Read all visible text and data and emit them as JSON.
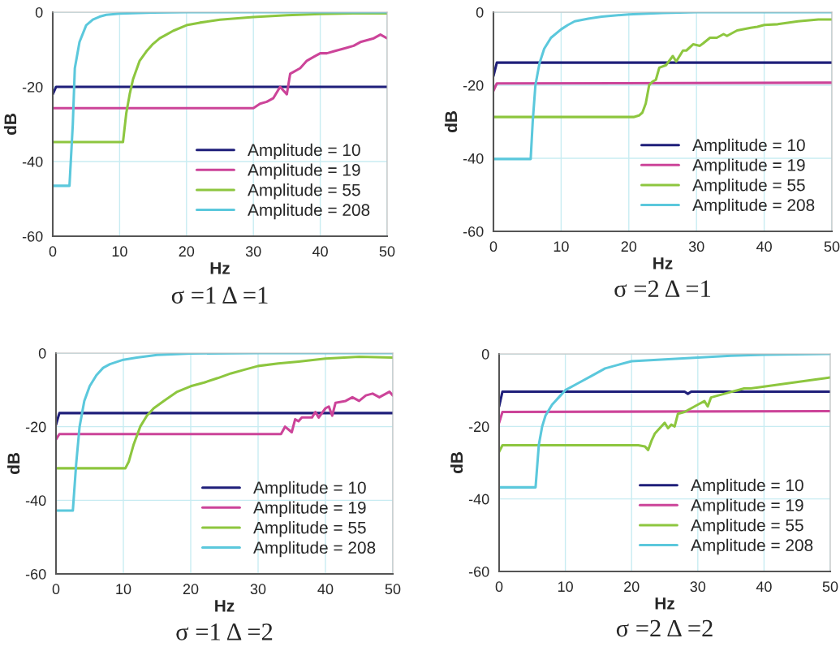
{
  "chart_data": [
    {
      "type": "line",
      "title": "σ =1 Δ =1",
      "xlabel": "Hz",
      "ylabel": "dB",
      "xlim": [
        0,
        50
      ],
      "xticks": [
        0,
        10,
        20,
        30,
        40,
        50
      ],
      "ylim": [
        -60,
        0
      ],
      "yticks": [
        -60,
        -40,
        -20,
        0
      ],
      "grid": true,
      "legend": "bottom right",
      "series": [
        {
          "name": "Amplitude = 10",
          "color": "#1f1f7a",
          "x": [
            0,
            0.5,
            50
          ],
          "values": [
            -22,
            -20,
            -20
          ]
        },
        {
          "name": "Amplitude = 19",
          "color": "#cc4499",
          "x": [
            0,
            30,
            31,
            32,
            33,
            34,
            35,
            35.5,
            36,
            37,
            38,
            39,
            40,
            41,
            42,
            43,
            44,
            45,
            46,
            47,
            48,
            49,
            50
          ],
          "values": [
            -25.7,
            -25.7,
            -24.5,
            -24,
            -23,
            -20,
            -22,
            -16.5,
            -16,
            -15,
            -13,
            -12,
            -11,
            -11,
            -10.5,
            -10,
            -9.5,
            -9,
            -8,
            -7.5,
            -7,
            -6,
            -7
          ]
        },
        {
          "name": "Amplitude = 55",
          "color": "#8dc63f",
          "x": [
            0,
            10.5,
            11,
            11.5,
            12,
            13,
            14,
            15,
            16,
            17,
            18,
            20,
            22,
            25,
            30,
            35,
            40,
            45,
            50
          ],
          "values": [
            -34.8,
            -34.8,
            -27,
            -22,
            -18,
            -13,
            -10.5,
            -8.5,
            -7,
            -6,
            -5,
            -3.5,
            -2.8,
            -2,
            -1.3,
            -0.8,
            -0.5,
            -0.3,
            -0.3
          ]
        },
        {
          "name": "Amplitude = 208",
          "color": "#5bc8dc",
          "x": [
            0,
            2.5,
            3,
            3.3,
            4,
            5,
            6,
            7,
            8,
            10,
            15,
            20,
            50
          ],
          "values": [
            -46.5,
            -46.5,
            -30,
            -15,
            -8,
            -3.5,
            -2,
            -1.2,
            -0.7,
            -0.4,
            -0.1,
            0,
            0
          ]
        }
      ]
    },
    {
      "type": "line",
      "title": "σ =2 Δ =1",
      "xlabel": "Hz",
      "ylabel": "dB",
      "xlim": [
        0,
        50
      ],
      "xticks": [
        0,
        10,
        20,
        30,
        40,
        50
      ],
      "ylim": [
        -60,
        0
      ],
      "yticks": [
        -60,
        -40,
        -20,
        0
      ],
      "grid": true,
      "legend": "bottom right",
      "series": [
        {
          "name": "Amplitude = 10",
          "color": "#1f1f7a",
          "x": [
            0,
            0.5,
            50
          ],
          "values": [
            -17.5,
            -13.8,
            -13.8
          ]
        },
        {
          "name": "Amplitude = 19",
          "color": "#cc4499",
          "x": [
            0,
            0.5,
            50
          ],
          "values": [
            -21.5,
            -19.5,
            -19.3
          ]
        },
        {
          "name": "Amplitude = 55",
          "color": "#8dc63f",
          "x": [
            0,
            20.7,
            21.5,
            22,
            22.5,
            23,
            23.5,
            24,
            24.5,
            25.5,
            26.5,
            27,
            28,
            28.5,
            29.5,
            30.5,
            31,
            32,
            33,
            34,
            34.5,
            36,
            38,
            39,
            40,
            42,
            45,
            48,
            50
          ],
          "values": [
            -28.7,
            -28.7,
            -28.3,
            -27.5,
            -25,
            -20,
            -19,
            -18.5,
            -15.2,
            -14.5,
            -12,
            -13.5,
            -10.5,
            -10.5,
            -8.8,
            -9.2,
            -8.5,
            -7,
            -7,
            -6,
            -6.5,
            -5,
            -4.3,
            -4,
            -3.5,
            -3.3,
            -2.5,
            -2,
            -2
          ]
        },
        {
          "name": "Amplitude = 208",
          "color": "#5bc8dc",
          "x": [
            0,
            5.5,
            5.8,
            6.2,
            6.8,
            7.5,
            8.5,
            10,
            11,
            12,
            14,
            16,
            20,
            25,
            30,
            50
          ],
          "values": [
            -40.2,
            -40.2,
            -30,
            -20,
            -14,
            -10,
            -7,
            -4.7,
            -3.5,
            -2.5,
            -1.8,
            -1.2,
            -0.6,
            -0.2,
            0,
            0
          ]
        }
      ]
    },
    {
      "type": "line",
      "title": "σ =1 Δ =2",
      "xlabel": "Hz",
      "ylabel": "dB",
      "xlim": [
        0,
        50
      ],
      "xticks": [
        0,
        10,
        20,
        30,
        40,
        50
      ],
      "ylim": [
        -60,
        0
      ],
      "yticks": [
        -60,
        -40,
        -20,
        0
      ],
      "grid": true,
      "legend": "bottom right",
      "series": [
        {
          "name": "Amplitude = 10",
          "color": "#1f1f7a",
          "x": [
            0,
            0.5,
            50
          ],
          "values": [
            -19.5,
            -16.3,
            -16.3
          ]
        },
        {
          "name": "Amplitude = 19",
          "color": "#cc4499",
          "x": [
            0,
            0.5,
            33.4,
            34,
            35,
            35.5,
            36,
            36.5,
            38,
            38.5,
            39,
            40,
            40.5,
            41,
            41.5,
            43,
            44,
            45,
            46,
            47,
            48,
            49,
            49.5,
            50
          ],
          "values": [
            -23.5,
            -22,
            -22,
            -20,
            -21.5,
            -18,
            -18.5,
            -17.5,
            -17.5,
            -16,
            -17.5,
            -15,
            -14.5,
            -17,
            -13.5,
            -13,
            -12,
            -13,
            -11.5,
            -11,
            -12,
            -11,
            -10.5,
            -11.5
          ]
        },
        {
          "name": "Amplitude = 55",
          "color": "#8dc63f",
          "x": [
            0,
            10.3,
            10.8,
            11.5,
            12.5,
            13.5,
            14.5,
            16,
            18,
            20,
            22,
            24,
            26,
            28,
            30,
            33,
            36,
            40,
            45,
            50
          ],
          "values": [
            -31.3,
            -31.3,
            -29.5,
            -25,
            -20,
            -17,
            -15,
            -13,
            -10.5,
            -9,
            -8,
            -6.8,
            -5.5,
            -4.5,
            -3.5,
            -2.8,
            -2.3,
            -1.5,
            -1,
            -1.2
          ]
        },
        {
          "name": "Amplitude = 208",
          "color": "#5bc8dc",
          "x": [
            0,
            2.5,
            3,
            3.5,
            4.2,
            5,
            6,
            7,
            8,
            10,
            12,
            15,
            20,
            30,
            50
          ],
          "values": [
            -42.8,
            -42.8,
            -30,
            -20,
            -13,
            -9,
            -6,
            -4,
            -3,
            -1.8,
            -1.2,
            -0.5,
            -0.1,
            0,
            0
          ]
        }
      ]
    },
    {
      "type": "line",
      "title": "σ =2 Δ =2",
      "xlabel": "Hz",
      "ylabel": "dB",
      "xlim": [
        0,
        50
      ],
      "xticks": [
        0,
        10,
        20,
        30,
        40,
        50
      ],
      "ylim": [
        -60,
        0
      ],
      "yticks": [
        -60,
        -40,
        -20,
        0
      ],
      "grid": true,
      "legend": "bottom right",
      "series": [
        {
          "name": "Amplitude = 10",
          "color": "#1f1f7a",
          "x": [
            0,
            0.5,
            28,
            28.5,
            29,
            50
          ],
          "values": [
            -14.5,
            -10.4,
            -10.4,
            -11,
            -10.4,
            -10.4
          ]
        },
        {
          "name": "Amplitude = 19",
          "color": "#cc4499",
          "x": [
            0,
            0.5,
            50
          ],
          "values": [
            -19,
            -16,
            -15.8
          ]
        },
        {
          "name": "Amplitude = 55",
          "color": "#8dc63f",
          "x": [
            0,
            0.5,
            21,
            22,
            22.5,
            23,
            23.5,
            24,
            25,
            25.5,
            26,
            26.5,
            27,
            28,
            29,
            30,
            31,
            31.5,
            32,
            33,
            34,
            35,
            36,
            37,
            38,
            40,
            42,
            44,
            46,
            48,
            50
          ],
          "values": [
            -27,
            -25.2,
            -25.2,
            -25.5,
            -26.5,
            -24,
            -22,
            -21,
            -19,
            -20.5,
            -19.5,
            -20,
            -16.5,
            -16,
            -15,
            -14,
            -13,
            -14.5,
            -12,
            -11.5,
            -11,
            -10.5,
            -10,
            -9.5,
            -9.5,
            -9,
            -8.5,
            -8,
            -7.5,
            -7,
            -6.5
          ]
        },
        {
          "name": "Amplitude = 208",
          "color": "#5bc8dc",
          "x": [
            0,
            5.5,
            6,
            6.5,
            7,
            8,
            9,
            10,
            12,
            14,
            16,
            18,
            20,
            25,
            30,
            35,
            40,
            50
          ],
          "values": [
            -36.8,
            -36.8,
            -25,
            -20,
            -17,
            -14,
            -12,
            -10,
            -8,
            -6,
            -4,
            -3,
            -2,
            -1.5,
            -1,
            -0.5,
            -0.2,
            0
          ]
        }
      ]
    }
  ]
}
